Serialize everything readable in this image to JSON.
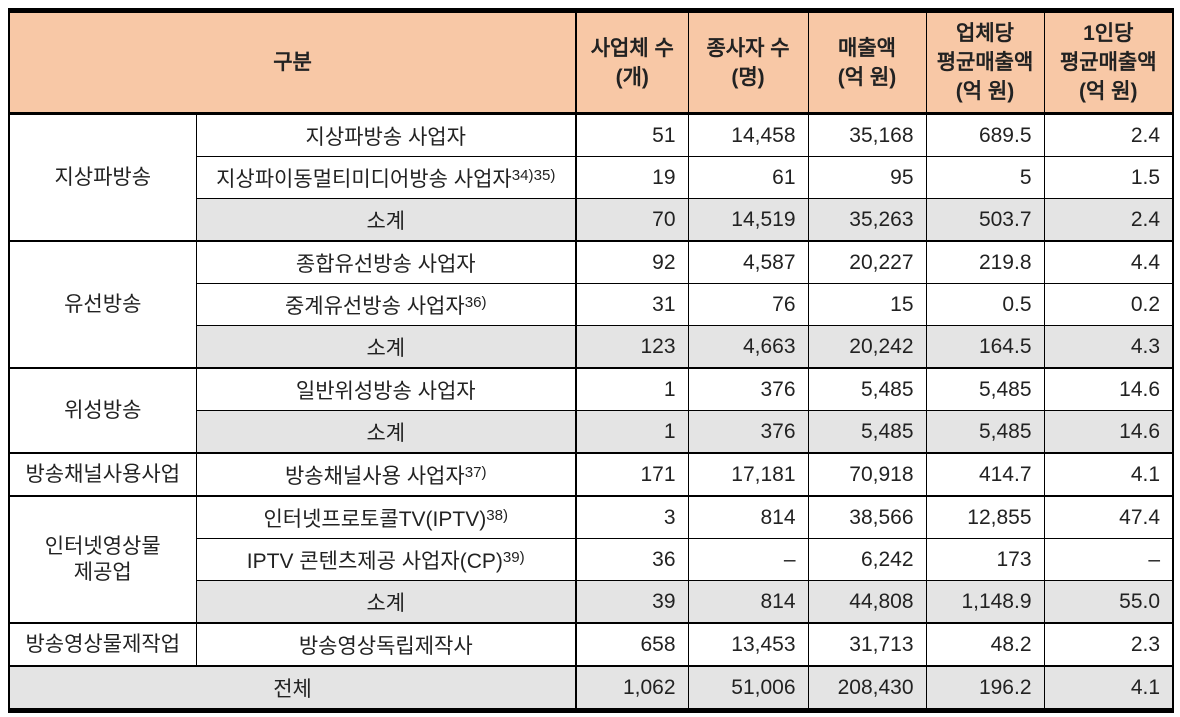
{
  "colors": {
    "header_bg": "#F8C8A6",
    "subtotal_bg": "#E4E4E4",
    "border": "#000000",
    "text": "#222222"
  },
  "header": {
    "category": "구분",
    "columns": [
      {
        "lines": [
          "사업체 수",
          "(개)"
        ]
      },
      {
        "lines": [
          "종사자 수",
          "(명)"
        ]
      },
      {
        "lines": [
          "매출액",
          "(억 원)"
        ]
      },
      {
        "lines": [
          "업체당",
          "평균매출액",
          "(억 원)"
        ]
      },
      {
        "lines": [
          "1인당",
          "평균매출액",
          "(억 원)"
        ]
      }
    ]
  },
  "groups": [
    {
      "name_lines": [
        "지상파방송"
      ],
      "rows": [
        {
          "label": "지상파방송 사업자",
          "sup": "",
          "subtotal": false,
          "values": [
            "51",
            "14,458",
            "35,168",
            "689.5",
            "2.4"
          ]
        },
        {
          "label": "지상파이동멀티미디어방송 사업자",
          "sup": "34)35)",
          "subtotal": false,
          "values": [
            "19",
            "61",
            "95",
            "5",
            "1.5"
          ]
        },
        {
          "label": "소계",
          "sup": "",
          "subtotal": true,
          "values": [
            "70",
            "14,519",
            "35,263",
            "503.7",
            "2.4"
          ]
        }
      ]
    },
    {
      "name_lines": [
        "유선방송"
      ],
      "rows": [
        {
          "label": "종합유선방송 사업자",
          "sup": "",
          "subtotal": false,
          "values": [
            "92",
            "4,587",
            "20,227",
            "219.8",
            "4.4"
          ]
        },
        {
          "label": "중계유선방송 사업자",
          "sup": "36)",
          "subtotal": false,
          "values": [
            "31",
            "76",
            "15",
            "0.5",
            "0.2"
          ]
        },
        {
          "label": "소계",
          "sup": "",
          "subtotal": true,
          "values": [
            "123",
            "4,663",
            "20,242",
            "164.5",
            "4.3"
          ]
        }
      ]
    },
    {
      "name_lines": [
        "위성방송"
      ],
      "rows": [
        {
          "label": "일반위성방송 사업자",
          "sup": "",
          "subtotal": false,
          "values": [
            "1",
            "376",
            "5,485",
            "5,485",
            "14.6"
          ]
        },
        {
          "label": "소계",
          "sup": "",
          "subtotal": true,
          "values": [
            "1",
            "376",
            "5,485",
            "5,485",
            "14.6"
          ]
        }
      ]
    },
    {
      "name_lines": [
        "방송채널사용사업"
      ],
      "rows": [
        {
          "label": "방송채널사용 사업자",
          "sup": "37)",
          "subtotal": false,
          "values": [
            "171",
            "17,181",
            "70,918",
            "414.7",
            "4.1"
          ]
        }
      ]
    },
    {
      "name_lines": [
        "인터넷영상물",
        "제공업"
      ],
      "rows": [
        {
          "label": "인터넷프로토콜TV(IPTV)",
          "sup": "38)",
          "subtotal": false,
          "values": [
            "3",
            "814",
            "38,566",
            "12,855",
            "47.4"
          ]
        },
        {
          "label": "IPTV 콘텐츠제공 사업자(CP)",
          "sup": "39)",
          "subtotal": false,
          "values": [
            "36",
            "–",
            "6,242",
            "173",
            "–"
          ]
        },
        {
          "label": "소계",
          "sup": "",
          "subtotal": true,
          "values": [
            "39",
            "814",
            "44,808",
            "1,148.9",
            "55.0"
          ]
        }
      ]
    },
    {
      "name_lines": [
        "방송영상물제작업"
      ],
      "rows": [
        {
          "label": "방송영상독립제작사",
          "sup": "",
          "subtotal": false,
          "values": [
            "658",
            "13,453",
            "31,713",
            "48.2",
            "2.3"
          ]
        }
      ]
    }
  ],
  "total": {
    "label": "전체",
    "values": [
      "1,062",
      "51,006",
      "208,430",
      "196.2",
      "4.1"
    ]
  }
}
